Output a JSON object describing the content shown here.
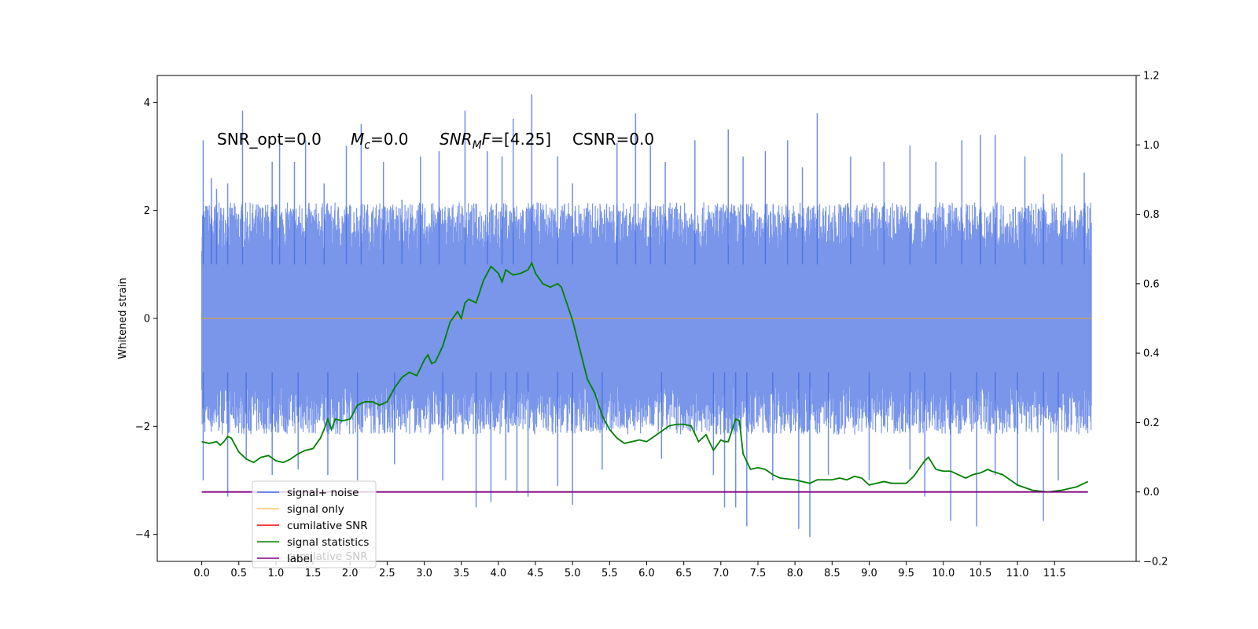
{
  "chart_data": {
    "type": "line",
    "title": "",
    "ylabel": "Whitened strain",
    "xlim": [
      -0.6,
      12.6
    ],
    "ylim": [
      -4.5,
      4.5
    ],
    "y2lim": [
      -0.2,
      1.2
    ],
    "x_ticks": [
      0.0,
      0.5,
      1.0,
      1.5,
      2.0,
      2.5,
      3.0,
      3.5,
      4.0,
      4.5,
      5.0,
      5.5,
      6.0,
      6.5,
      7.0,
      7.5,
      8.0,
      8.5,
      9.0,
      9.5,
      10.0,
      10.5,
      11.0,
      11.5
    ],
    "x_tick_labels": [
      "0.0",
      "0.5",
      "1.0",
      "1.5",
      "2.0",
      "2.5",
      "3.0",
      "3.5",
      "4.0",
      "4.5",
      "5.0",
      "5.5",
      "6.0",
      "6.5",
      "7.0",
      "7.5",
      "8.0",
      "8.5",
      "9.0",
      "9.5",
      "10.0",
      "10.5",
      "11.0",
      "11.5"
    ],
    "y_ticks": [
      -4,
      -2,
      0,
      2,
      4
    ],
    "y_tick_labels": [
      "−4",
      "−2",
      "0",
      "2",
      "4"
    ],
    "y2_ticks": [
      -0.2,
      0.0,
      0.2,
      0.4,
      0.6,
      0.8,
      1.0,
      1.2
    ],
    "y2_tick_labels": [
      "−0.2",
      "0.0",
      "0.2",
      "0.4",
      "0.6",
      "0.8",
      "1.0",
      "1.2"
    ],
    "annotations": {
      "snr_opt": "SNR_opt=0.0",
      "mc_sym": "M",
      "mc_sub": "c",
      "mc_val": "=0.0",
      "snrmf_sym": "SNR",
      "snrmf_sub": "M",
      "snrmf_sym2": "F",
      "snrmf_val": "=[4.25]",
      "csnr": "CSNR=0.0"
    },
    "legend": {
      "placement": "lower-left",
      "entries": [
        {
          "label": "signal+ noise",
          "color": "#4169e1"
        },
        {
          "label": "signal only",
          "color": "#ffa500"
        },
        {
          "label": "cumilative SNR",
          "color": "#ff0000"
        },
        {
          "label": "signal statistics",
          "color": "#008000"
        },
        {
          "label": "label",
          "color": "#800080"
        }
      ],
      "hidden_text": "cumilative SNR"
    },
    "series": [
      {
        "name": "signal+ noise",
        "axis": "left",
        "color": "#4169e1",
        "x_range": [
          0.0,
          12.0
        ],
        "envelope_upper": 1.7,
        "envelope_lower": -1.7,
        "spikes": [
          [
            0.02,
            3.3
          ],
          [
            0.13,
            2.6
          ],
          [
            0.2,
            2.4
          ],
          [
            0.35,
            2.5
          ],
          [
            0.55,
            3.85
          ],
          [
            0.95,
            2.9
          ],
          [
            1.05,
            3.3
          ],
          [
            1.25,
            2.9
          ],
          [
            1.4,
            3.3
          ],
          [
            1.65,
            2.5
          ],
          [
            1.95,
            3.2
          ],
          [
            2.15,
            3.6
          ],
          [
            2.45,
            2.9
          ],
          [
            2.7,
            2.2
          ],
          [
            2.95,
            3.0
          ],
          [
            3.2,
            3.1
          ],
          [
            3.55,
            3.85
          ],
          [
            3.85,
            3.1
          ],
          [
            4.05,
            3.0
          ],
          [
            4.2,
            3.7
          ],
          [
            4.45,
            4.15
          ],
          [
            4.8,
            3.0
          ],
          [
            5.0,
            2.5
          ],
          [
            5.6,
            3.25
          ],
          [
            5.85,
            3.8
          ],
          [
            6.05,
            3.2
          ],
          [
            6.25,
            2.9
          ],
          [
            6.65,
            3.3
          ],
          [
            7.1,
            3.5
          ],
          [
            7.3,
            3.0
          ],
          [
            7.6,
            3.1
          ],
          [
            7.9,
            3.3
          ],
          [
            8.1,
            2.8
          ],
          [
            8.3,
            3.8
          ],
          [
            8.75,
            3.0
          ],
          [
            9.2,
            2.9
          ],
          [
            9.55,
            3.2
          ],
          [
            9.9,
            2.9
          ],
          [
            10.25,
            3.3
          ],
          [
            10.5,
            3.4
          ],
          [
            10.7,
            3.4
          ],
          [
            11.1,
            3.0
          ],
          [
            11.35,
            2.3
          ],
          [
            11.6,
            3.05
          ],
          [
            11.9,
            2.7
          ],
          [
            0.02,
            -3.0
          ],
          [
            0.35,
            -3.3
          ],
          [
            0.6,
            -2.6
          ],
          [
            0.95,
            -2.9
          ],
          [
            1.3,
            -2.8
          ],
          [
            1.7,
            -2.9
          ],
          [
            2.1,
            -3.0
          ],
          [
            2.6,
            -2.7
          ],
          [
            3.25,
            -3.0
          ],
          [
            3.7,
            -3.5
          ],
          [
            3.9,
            -3.4
          ],
          [
            4.1,
            -3.0
          ],
          [
            4.25,
            -3.2
          ],
          [
            4.4,
            -3.3
          ],
          [
            4.8,
            -3.1
          ],
          [
            5.0,
            -3.45
          ],
          [
            5.4,
            -2.8
          ],
          [
            6.2,
            -2.6
          ],
          [
            6.9,
            -2.9
          ],
          [
            7.05,
            -3.5
          ],
          [
            7.2,
            -3.5
          ],
          [
            7.35,
            -3.85
          ],
          [
            7.7,
            -3.0
          ],
          [
            8.05,
            -3.9
          ],
          [
            8.2,
            -4.05
          ],
          [
            8.45,
            -2.9
          ],
          [
            9.0,
            -3.0
          ],
          [
            9.55,
            -2.8
          ],
          [
            9.75,
            -3.3
          ],
          [
            10.1,
            -3.75
          ],
          [
            10.45,
            -3.85
          ],
          [
            10.7,
            -2.9
          ],
          [
            11.0,
            -3.1
          ],
          [
            11.35,
            -3.75
          ],
          [
            11.55,
            -3.0
          ]
        ]
      },
      {
        "name": "signal only",
        "axis": "left",
        "color": "#ffa500",
        "x": [
          0.0,
          12.0
        ],
        "y": [
          0.0,
          0.0
        ]
      },
      {
        "name": "signal statistics",
        "axis": "right",
        "color": "#008000",
        "x": [
          0.0,
          0.1,
          0.2,
          0.25,
          0.3,
          0.35,
          0.4,
          0.5,
          0.6,
          0.7,
          0.8,
          0.9,
          1.0,
          1.1,
          1.2,
          1.3,
          1.4,
          1.5,
          1.6,
          1.65,
          1.7,
          1.75,
          1.8,
          1.9,
          2.0,
          2.1,
          2.2,
          2.3,
          2.4,
          2.5,
          2.6,
          2.7,
          2.8,
          2.9,
          3.0,
          3.05,
          3.1,
          3.15,
          3.25,
          3.35,
          3.45,
          3.5,
          3.55,
          3.6,
          3.65,
          3.7,
          3.8,
          3.9,
          4.0,
          4.05,
          4.1,
          4.2,
          4.3,
          4.4,
          4.45,
          4.5,
          4.6,
          4.7,
          4.8,
          4.85,
          5.0,
          5.1,
          5.2,
          5.3,
          5.4,
          5.5,
          5.6,
          5.7,
          5.8,
          5.9,
          6.0,
          6.1,
          6.2,
          6.3,
          6.4,
          6.5,
          6.6,
          6.7,
          6.8,
          6.9,
          7.0,
          7.05,
          7.1,
          7.2,
          7.25,
          7.3,
          7.4,
          7.5,
          7.6,
          7.7,
          7.8,
          8.0,
          8.2,
          8.3,
          8.5,
          8.6,
          8.7,
          8.8,
          8.9,
          9.0,
          9.2,
          9.3,
          9.5,
          9.6,
          9.7,
          9.75,
          9.8,
          9.9,
          10.0,
          10.1,
          10.2,
          10.3,
          10.4,
          10.5,
          10.6,
          10.65,
          10.8,
          11.0,
          11.2,
          11.4,
          11.6,
          11.8,
          11.9,
          11.95
        ],
        "y": [
          0.145,
          0.14,
          0.145,
          0.135,
          0.145,
          0.16,
          0.155,
          0.115,
          0.095,
          0.085,
          0.1,
          0.105,
          0.09,
          0.085,
          0.095,
          0.11,
          0.12,
          0.125,
          0.155,
          0.18,
          0.21,
          0.18,
          0.21,
          0.205,
          0.21,
          0.25,
          0.26,
          0.26,
          0.25,
          0.26,
          0.3,
          0.33,
          0.345,
          0.335,
          0.38,
          0.395,
          0.37,
          0.375,
          0.42,
          0.49,
          0.52,
          0.5,
          0.545,
          0.555,
          0.55,
          0.545,
          0.61,
          0.65,
          0.63,
          0.605,
          0.64,
          0.625,
          0.63,
          0.64,
          0.66,
          0.63,
          0.6,
          0.59,
          0.6,
          0.59,
          0.495,
          0.41,
          0.325,
          0.285,
          0.22,
          0.18,
          0.155,
          0.14,
          0.145,
          0.15,
          0.145,
          0.16,
          0.175,
          0.19,
          0.195,
          0.195,
          0.19,
          0.145,
          0.165,
          0.12,
          0.15,
          0.145,
          0.145,
          0.21,
          0.205,
          0.11,
          0.065,
          0.07,
          0.065,
          0.05,
          0.04,
          0.035,
          0.025,
          0.035,
          0.035,
          0.04,
          0.035,
          0.045,
          0.04,
          0.02,
          0.03,
          0.025,
          0.025,
          0.045,
          0.075,
          0.09,
          0.1,
          0.065,
          0.06,
          0.06,
          0.05,
          0.04,
          0.05,
          0.055,
          0.065,
          0.06,
          0.05,
          0.02,
          0.005,
          0.0,
          0.005,
          0.015,
          0.025,
          0.03
        ]
      },
      {
        "name": "label",
        "axis": "right",
        "color": "#800080",
        "x": [
          0.0,
          11.95
        ],
        "y": [
          0.0,
          0.0
        ]
      }
    ]
  }
}
